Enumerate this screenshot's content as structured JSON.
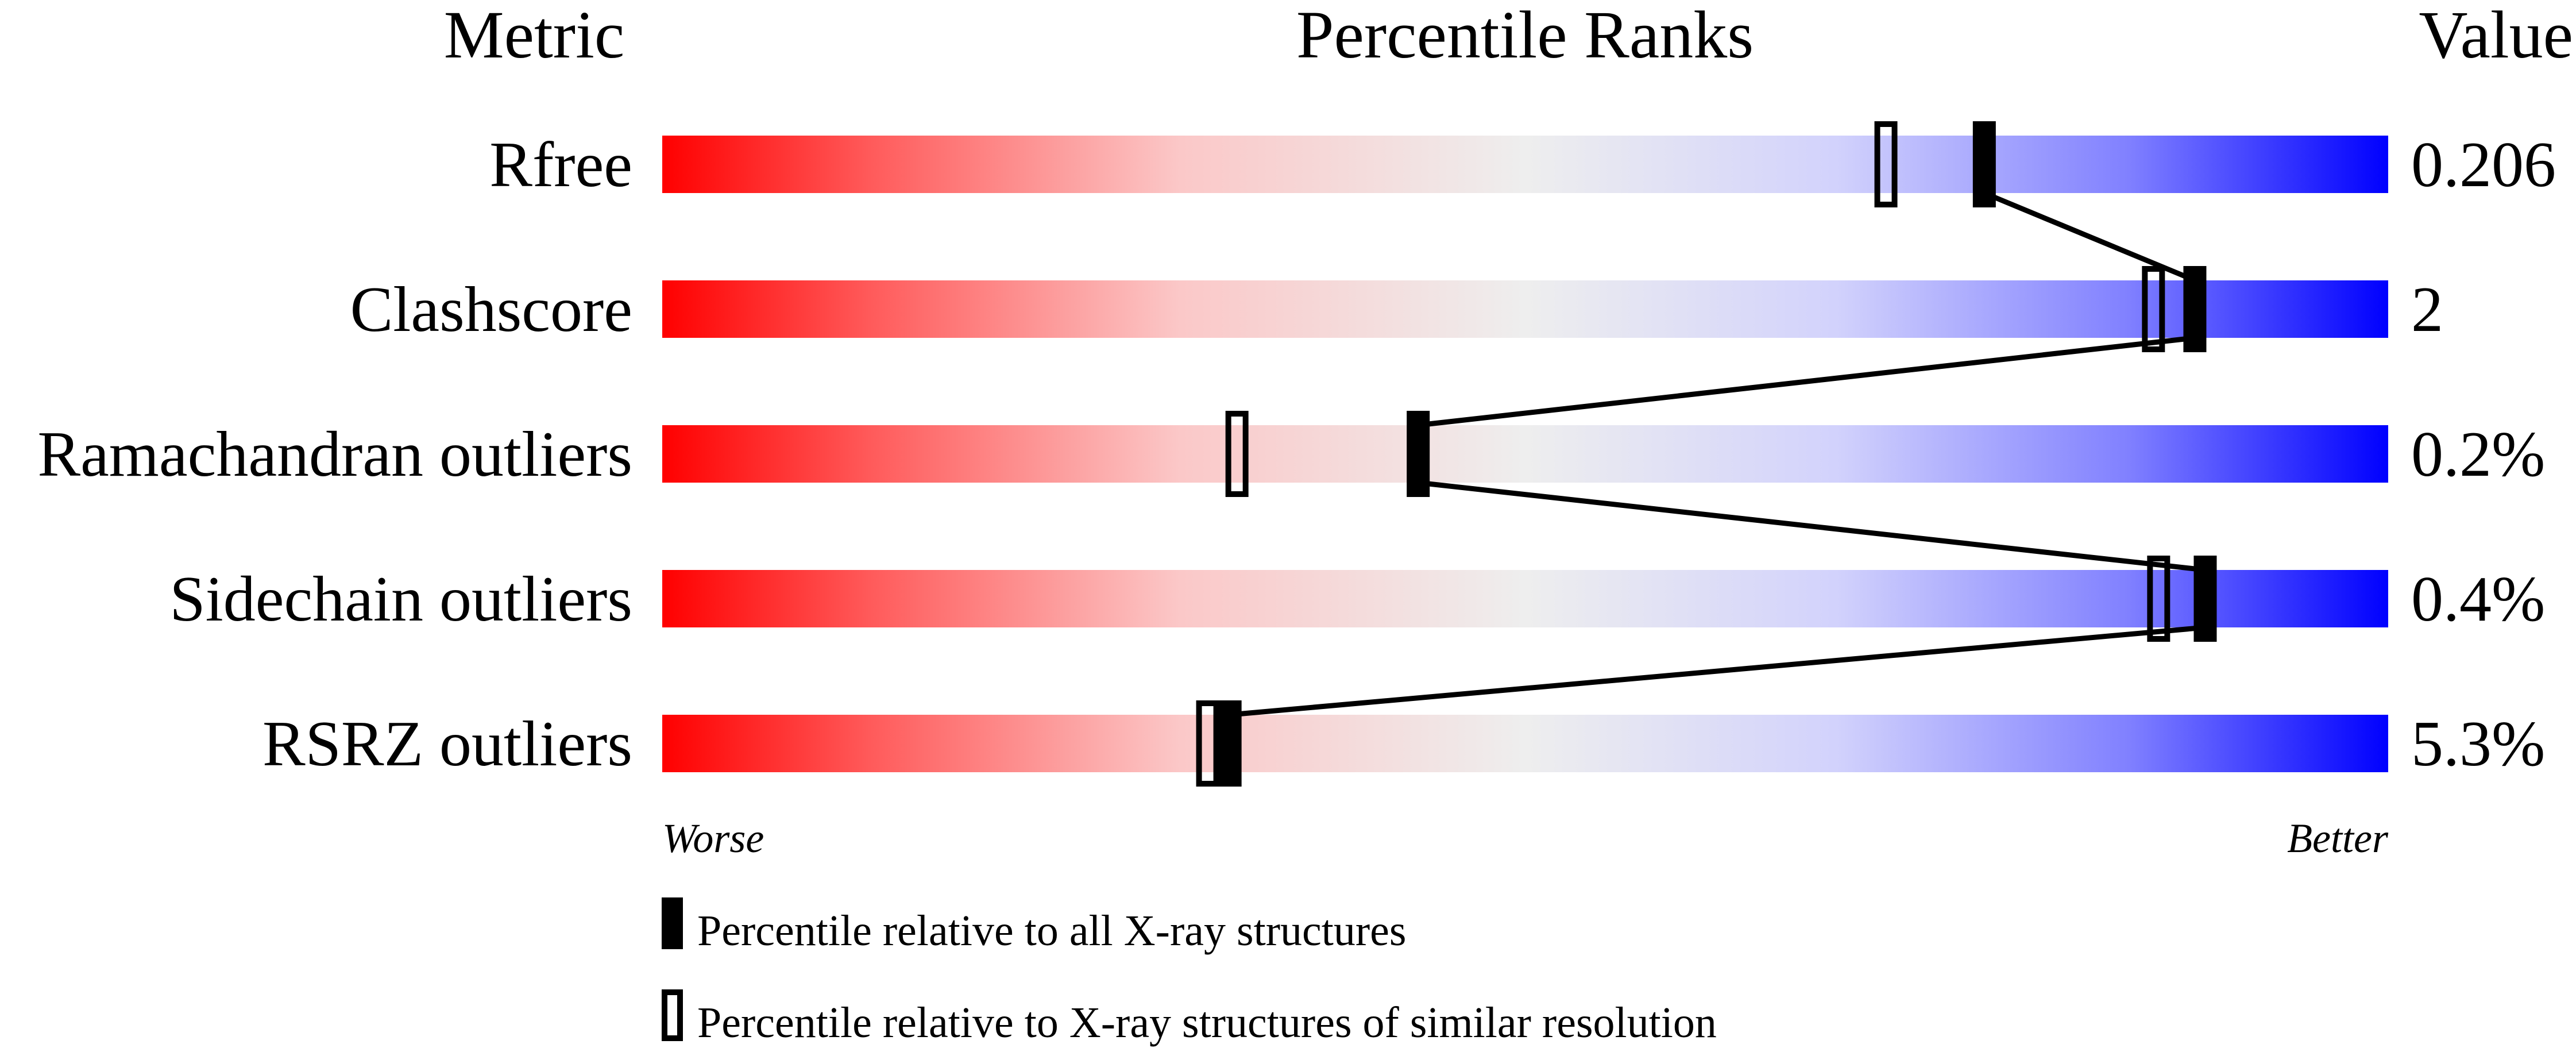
{
  "chart_data": {
    "type": "percentile-rank-bars",
    "headers": {
      "metric": "Metric",
      "ranks": "Percentile Ranks",
      "value": "Value"
    },
    "xlim": [
      0,
      100
    ],
    "gradient_colors": {
      "worse": "#ff0000",
      "middle": "#eeeeee",
      "better": "#0000ff"
    },
    "axis_ends": {
      "left": "Worse",
      "right": "Better"
    },
    "metrics": [
      {
        "label": "Rfree",
        "value": "0.206",
        "percentile_all": 76.6,
        "percentile_similar": 70.9
      },
      {
        "label": "Clashscore",
        "value": "2",
        "percentile_all": 88.8,
        "percentile_similar": 86.4
      },
      {
        "label": "Ramachandran outliers",
        "value": "0.2%",
        "percentile_all": 43.8,
        "percentile_similar": 33.3
      },
      {
        "label": "Sidechain outliers",
        "value": "0.4%",
        "percentile_all": 89.4,
        "percentile_similar": 86.7
      },
      {
        "label": "RSRZ outliers",
        "value": "5.3%",
        "percentile_all": 32.9,
        "percentile_similar": 31.6
      }
    ],
    "legend": [
      {
        "marker": "filled",
        "label": "Percentile relative to all X-ray structures"
      },
      {
        "marker": "open",
        "label": "Percentile relative to X-ray structures of similar resolution"
      }
    ]
  }
}
